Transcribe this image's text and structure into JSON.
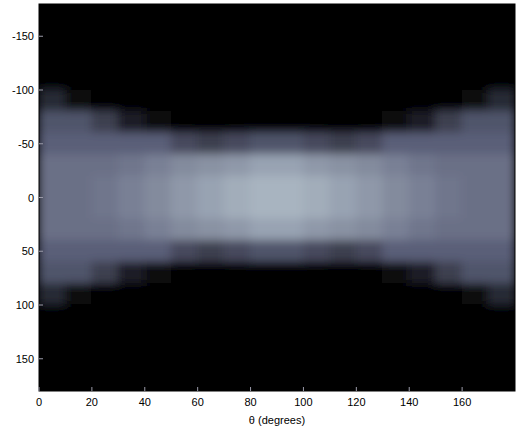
{
  "chart_data": {
    "type": "heatmap",
    "x_label": "θ (degrees)",
    "x": [
      5,
      15,
      25,
      35,
      45,
      55,
      65,
      75,
      85,
      95,
      105,
      115,
      125,
      135,
      145,
      155,
      165,
      175
    ],
    "y": [
      -170,
      -150,
      -130,
      -110,
      -90,
      -70,
      -50,
      -30,
      -10,
      10,
      30,
      50,
      70,
      90,
      110,
      130,
      150,
      170
    ],
    "values": [
      [
        0,
        0,
        0,
        0,
        0,
        0,
        0,
        0,
        0,
        0,
        0,
        0,
        0,
        0,
        0,
        0,
        0,
        0
      ],
      [
        0,
        0,
        0,
        0,
        0,
        0,
        0,
        0,
        0,
        0,
        0,
        0,
        0,
        0,
        0,
        0,
        0,
        0
      ],
      [
        0,
        0,
        0,
        0,
        0,
        0,
        0,
        0,
        0,
        0,
        0,
        0,
        0,
        0,
        0,
        0,
        0,
        0
      ],
      [
        0,
        0,
        0,
        0,
        0,
        0,
        0,
        0,
        0,
        0,
        0,
        0,
        0,
        0,
        0,
        0,
        0,
        0
      ],
      [
        0.2,
        0.05,
        0,
        0,
        0,
        0,
        0,
        0,
        0,
        0,
        0,
        0,
        0,
        0,
        0,
        0,
        0.05,
        0.2
      ],
      [
        0.4,
        0.4,
        0.3,
        0.15,
        0.05,
        0,
        0,
        0,
        0,
        0,
        0,
        0,
        0,
        0.05,
        0.15,
        0.3,
        0.4,
        0.4
      ],
      [
        0.45,
        0.45,
        0.45,
        0.45,
        0.45,
        0.35,
        0.3,
        0.35,
        0.4,
        0.4,
        0.35,
        0.3,
        0.35,
        0.45,
        0.45,
        0.45,
        0.45,
        0.45
      ],
      [
        0.5,
        0.5,
        0.5,
        0.52,
        0.55,
        0.58,
        0.6,
        0.62,
        0.65,
        0.65,
        0.62,
        0.6,
        0.58,
        0.55,
        0.52,
        0.5,
        0.5,
        0.5
      ],
      [
        0.5,
        0.5,
        0.52,
        0.55,
        0.58,
        0.62,
        0.65,
        0.68,
        0.7,
        0.7,
        0.68,
        0.65,
        0.62,
        0.58,
        0.55,
        0.52,
        0.5,
        0.5
      ],
      [
        0.5,
        0.5,
        0.52,
        0.55,
        0.58,
        0.62,
        0.65,
        0.68,
        0.7,
        0.7,
        0.68,
        0.65,
        0.62,
        0.58,
        0.55,
        0.52,
        0.5,
        0.5
      ],
      [
        0.5,
        0.5,
        0.5,
        0.52,
        0.55,
        0.58,
        0.6,
        0.62,
        0.65,
        0.65,
        0.62,
        0.6,
        0.58,
        0.55,
        0.52,
        0.5,
        0.5,
        0.5
      ],
      [
        0.45,
        0.45,
        0.45,
        0.45,
        0.45,
        0.35,
        0.3,
        0.35,
        0.4,
        0.4,
        0.35,
        0.3,
        0.35,
        0.45,
        0.45,
        0.45,
        0.45,
        0.45
      ],
      [
        0.4,
        0.4,
        0.3,
        0.15,
        0.05,
        0,
        0,
        0,
        0,
        0,
        0,
        0,
        0,
        0.05,
        0.15,
        0.3,
        0.4,
        0.4
      ],
      [
        0.2,
        0.05,
        0,
        0,
        0,
        0,
        0,
        0,
        0,
        0,
        0,
        0,
        0,
        0,
        0,
        0,
        0.05,
        0.2
      ],
      [
        0,
        0,
        0,
        0,
        0,
        0,
        0,
        0,
        0,
        0,
        0,
        0,
        0,
        0,
        0,
        0,
        0,
        0
      ],
      [
        0,
        0,
        0,
        0,
        0,
        0,
        0,
        0,
        0,
        0,
        0,
        0,
        0,
        0,
        0,
        0,
        0,
        0
      ],
      [
        0,
        0,
        0,
        0,
        0,
        0,
        0,
        0,
        0,
        0,
        0,
        0,
        0,
        0,
        0,
        0,
        0,
        0
      ],
      [
        0,
        0,
        0,
        0,
        0,
        0,
        0,
        0,
        0,
        0,
        0,
        0,
        0,
        0,
        0,
        0,
        0,
        0
      ]
    ],
    "zlim": [
      0,
      1
    ],
    "xlim": [
      0,
      180
    ],
    "ylim": [
      180,
      -180
    ],
    "xticks": [
      0,
      20,
      40,
      60,
      80,
      100,
      120,
      140,
      160
    ],
    "yticks": [
      -150,
      -100,
      -50,
      0,
      50,
      100,
      150
    ],
    "grid": false
  }
}
